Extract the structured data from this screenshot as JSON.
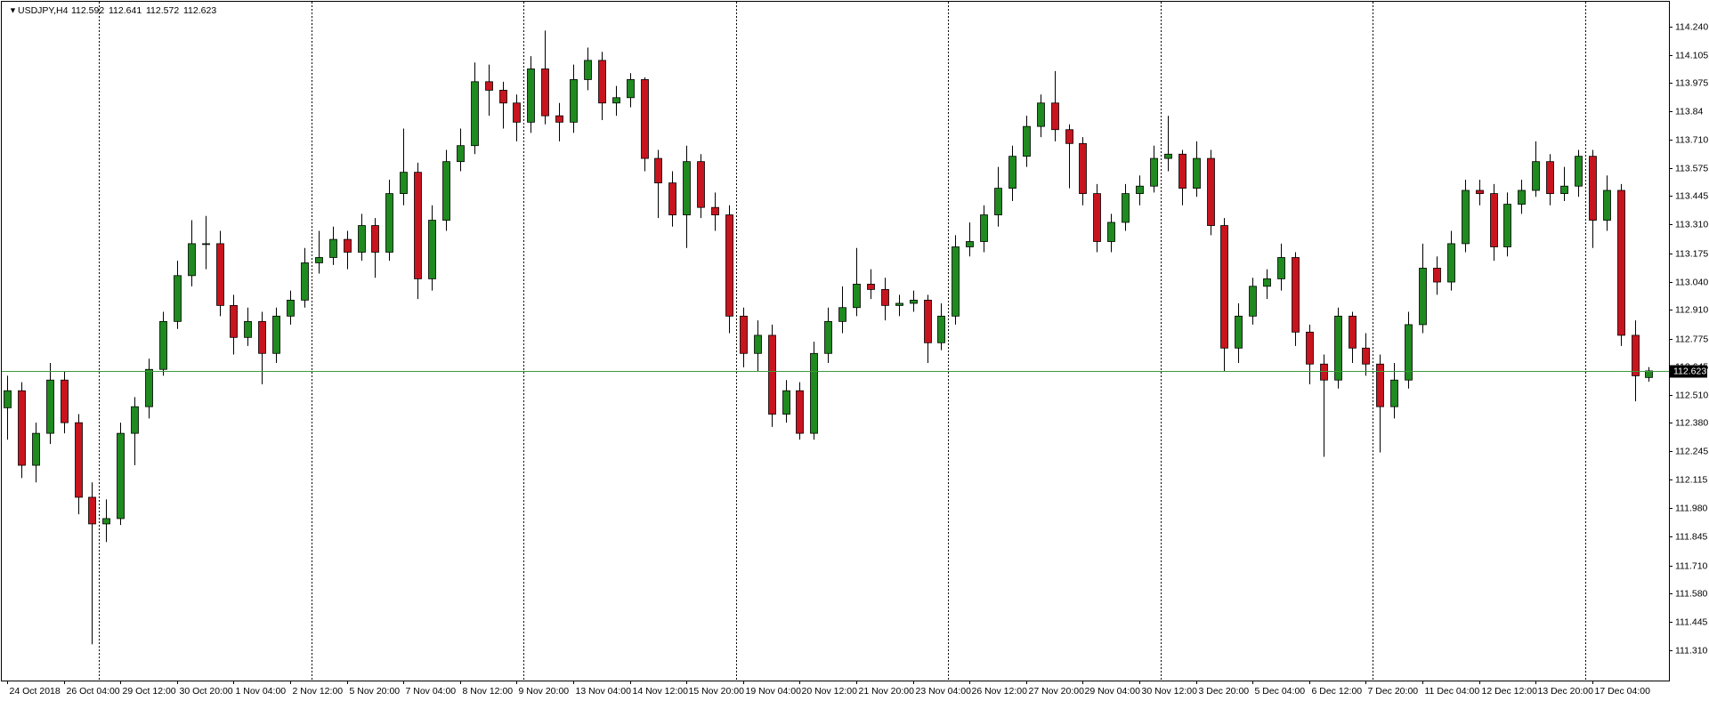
{
  "chart_data": {
    "type": "candlestick",
    "symbol": "USDJPY,H4",
    "up_color": "#1f8a1f",
    "down_color": "#c8141e",
    "wick_color": "#000000",
    "price_line_color": "#3c9a3c",
    "ylim": [
      111.17,
      114.355
    ],
    "yticks": [
      {
        "value": 114.24,
        "label": "114.240"
      },
      114.105,
      113.975,
      113.84,
      {
        "value": 113.71,
        "label": "113.710"
      },
      113.575,
      113.445,
      {
        "value": 113.31,
        "label": "113.310"
      },
      113.175,
      {
        "value": 113.04,
        "label": "113.040"
      },
      {
        "value": 112.91,
        "label": "112.910"
      },
      112.775,
      112.645,
      {
        "value": 112.51,
        "label": "112.510"
      },
      {
        "value": 112.38,
        "label": "112.380"
      },
      112.245,
      112.115,
      {
        "value": 111.98,
        "label": "111.980"
      },
      111.845,
      {
        "value": 111.71,
        "label": "111.710"
      },
      {
        "value": 111.58,
        "label": "111.580"
      },
      111.445,
      {
        "value": 111.31,
        "label": "111.310"
      }
    ],
    "categories": [
      "24 Oct 2018",
      null,
      null,
      null,
      "26 Oct 04:00",
      null,
      null,
      null,
      "29 Oct 12:00",
      null,
      null,
      null,
      "30 Oct 20:00",
      null,
      null,
      null,
      "1 Nov 04:00",
      null,
      null,
      null,
      "2 Nov 12:00",
      null,
      null,
      null,
      "5 Nov 20:00",
      null,
      null,
      null,
      "7 Nov 04:00",
      null,
      null,
      null,
      "8 Nov 12:00",
      null,
      null,
      null,
      "9 Nov 20:00",
      null,
      null,
      null,
      "13 Nov 04:00",
      null,
      null,
      null,
      "14 Nov 12:00",
      null,
      null,
      null,
      "15 Nov 20:00",
      null,
      null,
      null,
      "19 Nov 04:00",
      null,
      null,
      null,
      "20 Nov 12:00",
      null,
      null,
      null,
      "21 Nov 20:00",
      null,
      null,
      null,
      "23 Nov 04:00",
      null,
      null,
      null,
      "26 Nov 12:00",
      null,
      null,
      null,
      "27 Nov 20:00",
      null,
      null,
      null,
      "29 Nov 04:00",
      null,
      null,
      null,
      "30 Nov 12:00",
      null,
      null,
      null,
      "3 Dec 20:00",
      null,
      null,
      null,
      "5 Dec 04:00",
      null,
      null,
      null,
      "6 Dec 12:00",
      null,
      null,
      null,
      "7 Dec 20:00",
      null,
      null,
      null,
      "11 Dec 04:00",
      null,
      null,
      null,
      "12 Dec 12:00",
      null,
      null,
      null,
      "13 Dec 20:00",
      null,
      null,
      null,
      "17 Dec 04:00",
      null,
      null,
      null,
      null
    ],
    "candles": [
      [
        112.45,
        112.6,
        112.3,
        112.53
      ],
      [
        112.53,
        112.57,
        112.12,
        112.18
      ],
      [
        112.18,
        112.38,
        112.1,
        112.33
      ],
      [
        112.33,
        112.66,
        112.28,
        112.58
      ],
      [
        112.58,
        112.62,
        112.33,
        112.38
      ],
      [
        112.38,
        112.42,
        111.95,
        112.03
      ],
      [
        112.03,
        112.1,
        111.34,
        111.905
      ],
      [
        111.905,
        112.02,
        111.82,
        111.93
      ],
      [
        111.93,
        112.38,
        111.9,
        112.33
      ],
      [
        112.33,
        112.5,
        112.18,
        112.455
      ],
      [
        112.455,
        112.68,
        112.4,
        112.63
      ],
      [
        112.63,
        112.9,
        112.6,
        112.855
      ],
      [
        112.855,
        113.14,
        112.82,
        113.07
      ],
      [
        113.07,
        113.33,
        113.02,
        113.22
      ],
      [
        113.22,
        113.35,
        113.1,
        113.22
      ],
      [
        113.22,
        113.28,
        112.88,
        112.93
      ],
      [
        112.93,
        112.98,
        112.7,
        112.78
      ],
      [
        112.78,
        112.92,
        112.74,
        112.855
      ],
      [
        112.855,
        112.9,
        112.56,
        112.705
      ],
      [
        112.705,
        112.92,
        112.66,
        112.88
      ],
      [
        112.88,
        113.0,
        112.84,
        112.955
      ],
      [
        112.955,
        113.2,
        112.92,
        113.13
      ],
      [
        113.13,
        113.28,
        113.08,
        113.155
      ],
      [
        113.155,
        113.3,
        113.12,
        113.24
      ],
      [
        113.24,
        113.28,
        113.1,
        113.18
      ],
      [
        113.18,
        113.36,
        113.14,
        113.305
      ],
      [
        113.305,
        113.34,
        113.06,
        113.18
      ],
      [
        113.18,
        113.52,
        113.14,
        113.455
      ],
      [
        113.455,
        113.76,
        113.4,
        113.555
      ],
      [
        113.555,
        113.6,
        112.96,
        113.055
      ],
      [
        113.055,
        113.4,
        113.0,
        113.33
      ],
      [
        113.33,
        113.66,
        113.28,
        113.605
      ],
      [
        113.605,
        113.76,
        113.56,
        113.68
      ],
      [
        113.68,
        114.07,
        113.64,
        113.98
      ],
      [
        113.98,
        114.06,
        113.82,
        113.94
      ],
      [
        113.94,
        113.98,
        113.76,
        113.88
      ],
      [
        113.88,
        113.92,
        113.7,
        113.79
      ],
      [
        113.79,
        114.1,
        113.74,
        114.04
      ],
      [
        114.04,
        114.22,
        113.78,
        113.82
      ],
      [
        113.82,
        113.88,
        113.7,
        113.79
      ],
      [
        113.79,
        114.06,
        113.74,
        113.99
      ],
      [
        113.99,
        114.14,
        113.94,
        114.08
      ],
      [
        114.08,
        114.12,
        113.8,
        113.88
      ],
      [
        113.88,
        113.96,
        113.82,
        113.905
      ],
      [
        113.905,
        114.02,
        113.86,
        113.99
      ],
      [
        113.99,
        114.0,
        113.56,
        113.62
      ],
      [
        113.62,
        113.66,
        113.34,
        113.505
      ],
      [
        113.505,
        113.56,
        113.3,
        113.355
      ],
      [
        113.355,
        113.68,
        113.2,
        113.605
      ],
      [
        113.605,
        113.64,
        113.34,
        113.39
      ],
      [
        113.39,
        113.46,
        113.28,
        113.355
      ],
      [
        113.355,
        113.4,
        112.8,
        112.88
      ],
      [
        112.88,
        112.92,
        112.64,
        112.705
      ],
      [
        112.705,
        112.86,
        112.62,
        112.79
      ],
      [
        112.79,
        112.84,
        112.36,
        112.42
      ],
      [
        112.42,
        112.58,
        112.38,
        112.53
      ],
      [
        112.53,
        112.57,
        112.3,
        112.33
      ],
      [
        112.33,
        112.76,
        112.3,
        112.705
      ],
      [
        112.705,
        112.92,
        112.66,
        112.855
      ],
      [
        112.855,
        113.02,
        112.8,
        112.92
      ],
      [
        112.92,
        113.2,
        112.88,
        113.03
      ],
      [
        113.03,
        113.1,
        112.96,
        113.005
      ],
      [
        113.005,
        113.06,
        112.86,
        112.93
      ],
      [
        112.93,
        112.98,
        112.88,
        112.94
      ],
      [
        112.94,
        113.0,
        112.9,
        112.955
      ],
      [
        112.955,
        112.98,
        112.66,
        112.755
      ],
      [
        112.755,
        112.94,
        112.72,
        112.88
      ],
      [
        112.88,
        113.26,
        112.84,
        113.205
      ],
      [
        113.205,
        113.32,
        113.16,
        113.23
      ],
      [
        113.23,
        113.4,
        113.18,
        113.355
      ],
      [
        113.355,
        113.58,
        113.3,
        113.48
      ],
      [
        113.48,
        113.68,
        113.42,
        113.63
      ],
      [
        113.63,
        113.82,
        113.58,
        113.77
      ],
      [
        113.77,
        113.92,
        113.72,
        113.88
      ],
      [
        113.88,
        114.03,
        113.7,
        113.755
      ],
      [
        113.755,
        113.78,
        113.48,
        113.69
      ],
      [
        113.69,
        113.72,
        113.4,
        113.455
      ],
      [
        113.455,
        113.5,
        113.18,
        113.23
      ],
      [
        113.23,
        113.36,
        113.18,
        113.32
      ],
      [
        113.32,
        113.5,
        113.28,
        113.455
      ],
      [
        113.455,
        113.54,
        113.4,
        113.49
      ],
      [
        113.49,
        113.68,
        113.46,
        113.62
      ],
      [
        113.62,
        113.82,
        113.56,
        113.64
      ],
      [
        113.64,
        113.66,
        113.4,
        113.48
      ],
      [
        113.48,
        113.7,
        113.44,
        113.62
      ],
      [
        113.62,
        113.66,
        113.26,
        113.305
      ],
      [
        113.305,
        113.34,
        112.62,
        112.73
      ],
      [
        112.73,
        112.94,
        112.66,
        112.88
      ],
      [
        112.88,
        113.06,
        112.84,
        113.02
      ],
      [
        113.02,
        113.1,
        112.96,
        113.055
      ],
      [
        113.055,
        113.22,
        113.0,
        113.155
      ],
      [
        113.155,
        113.18,
        112.74,
        112.805
      ],
      [
        112.805,
        112.84,
        112.56,
        112.655
      ],
      [
        112.655,
        112.7,
        112.22,
        112.58
      ],
      [
        112.58,
        112.92,
        112.54,
        112.88
      ],
      [
        112.88,
        112.9,
        112.66,
        112.73
      ],
      [
        112.73,
        112.8,
        112.6,
        112.655
      ],
      [
        112.655,
        112.7,
        112.24,
        112.455
      ],
      [
        112.455,
        112.66,
        112.4,
        112.58
      ],
      [
        112.58,
        112.9,
        112.54,
        112.84
      ],
      [
        112.84,
        113.22,
        112.8,
        113.105
      ],
      [
        113.105,
        113.16,
        112.98,
        113.04
      ],
      [
        113.04,
        113.28,
        113.0,
        113.22
      ],
      [
        113.22,
        113.52,
        113.18,
        113.47
      ],
      [
        113.47,
        113.52,
        113.4,
        113.455
      ],
      [
        113.455,
        113.5,
        113.14,
        113.205
      ],
      [
        113.205,
        113.46,
        113.16,
        113.405
      ],
      [
        113.405,
        113.52,
        113.36,
        113.47
      ],
      [
        113.47,
        113.7,
        113.44,
        113.605
      ],
      [
        113.605,
        113.64,
        113.4,
        113.455
      ],
      [
        113.455,
        113.58,
        113.42,
        113.49
      ],
      [
        113.49,
        113.66,
        113.44,
        113.63
      ],
      [
        113.63,
        113.66,
        113.2,
        113.33
      ],
      [
        113.33,
        113.54,
        113.28,
        113.47
      ],
      [
        113.47,
        113.5,
        112.74,
        112.79
      ],
      [
        112.79,
        112.86,
        112.48,
        112.6
      ],
      [
        112.592,
        112.641,
        112.572,
        112.623
      ]
    ]
  }
}
